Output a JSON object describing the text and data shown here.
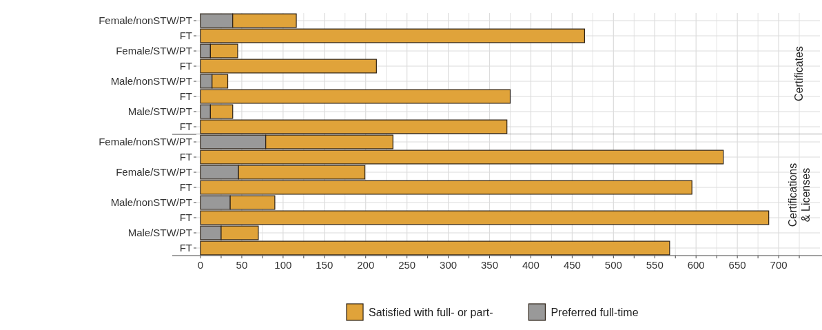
{
  "chart_data": [
    {
      "type": "bar",
      "title": "Certificates",
      "orientation": "horizontal",
      "stacked": true,
      "categories": [
        "Female/nonSTW/PT",
        "FT",
        "Female/STW/PT",
        "FT",
        "Male/nonSTW/PT",
        "FT",
        "Male/STW/PT",
        "FT"
      ],
      "series": [
        {
          "color": "#999999",
          "values": [
            39,
            null,
            12,
            null,
            14,
            null,
            12,
            null
          ]
        },
        {
          "color": "#e0a33a",
          "values": [
            77,
            465,
            33,
            213,
            19,
            375,
            27,
            371
          ]
        }
      ],
      "xlim": [
        -5,
        750
      ],
      "xticks": [
        0,
        {
          "value": 25,
          "label": null
        },
        50,
        {
          "value": 75,
          "label": null
        },
        100,
        {
          "value": 125,
          "label": null
        },
        150,
        {
          "value": 175,
          "label": null
        },
        200,
        {
          "value": 225,
          "label": null
        },
        250,
        {
          "value": 275,
          "label": null
        },
        300,
        {
          "value": 325,
          "label": null
        },
        350,
        {
          "value": 375,
          "label": null
        },
        400,
        {
          "value": 425,
          "label": null
        },
        450,
        {
          "value": 475,
          "label": null
        },
        500,
        {
          "value": 525,
          "label": null
        },
        550,
        {
          "value": 575,
          "label": null
        },
        600,
        {
          "value": 625,
          "label": null
        },
        650,
        {
          "value": 675,
          "label": null
        },
        700,
        {
          "value": 725,
          "label": null
        }
      ],
      "grid": true,
      "tick_labels": "y"
    },
    {
      "type": "bar",
      "title": "Certifications & Licenses",
      "orientation": "horizontal",
      "stacked": true,
      "categories": [
        "Female/nonSTW/PT",
        "FT",
        "Female/STW/PT",
        "FT",
        "Male/nonSTW/PT",
        "FT",
        "Male/STW/PT",
        "FT"
      ],
      "series": [
        {
          "name": "Preferred full-time",
          "color": "#999999",
          "values": [
            79,
            null,
            46,
            null,
            36,
            null,
            25,
            null
          ]
        },
        {
          "name": "Satisfied with full- or part-",
          "color": "#e0a33a",
          "values": [
            154,
            633,
            153,
            595,
            54,
            688,
            45,
            568
          ]
        }
      ],
      "xlim": [
        -5,
        750
      ],
      "xticks": [
        0,
        {
          "value": 25,
          "label": null
        },
        50,
        {
          "value": 75,
          "label": null
        },
        100,
        {
          "value": 125,
          "label": null
        },
        150,
        {
          "value": 175,
          "label": null
        },
        200,
        {
          "value": 225,
          "label": null
        },
        250,
        {
          "value": 275,
          "label": null
        },
        300,
        {
          "value": 325,
          "label": null
        },
        350,
        {
          "value": 375,
          "label": null
        },
        400,
        {
          "value": 425,
          "label": null
        },
        450,
        {
          "value": 475,
          "label": null
        },
        500,
        {
          "value": 525,
          "label": null
        },
        550,
        {
          "value": 575,
          "label": null
        },
        600,
        {
          "value": 625,
          "label": null
        },
        650,
        {
          "value": 675,
          "label": null
        },
        700,
        {
          "value": 725,
          "label": null
        }
      ],
      "grid": true,
      "legend": "bottom"
    }
  ]
}
